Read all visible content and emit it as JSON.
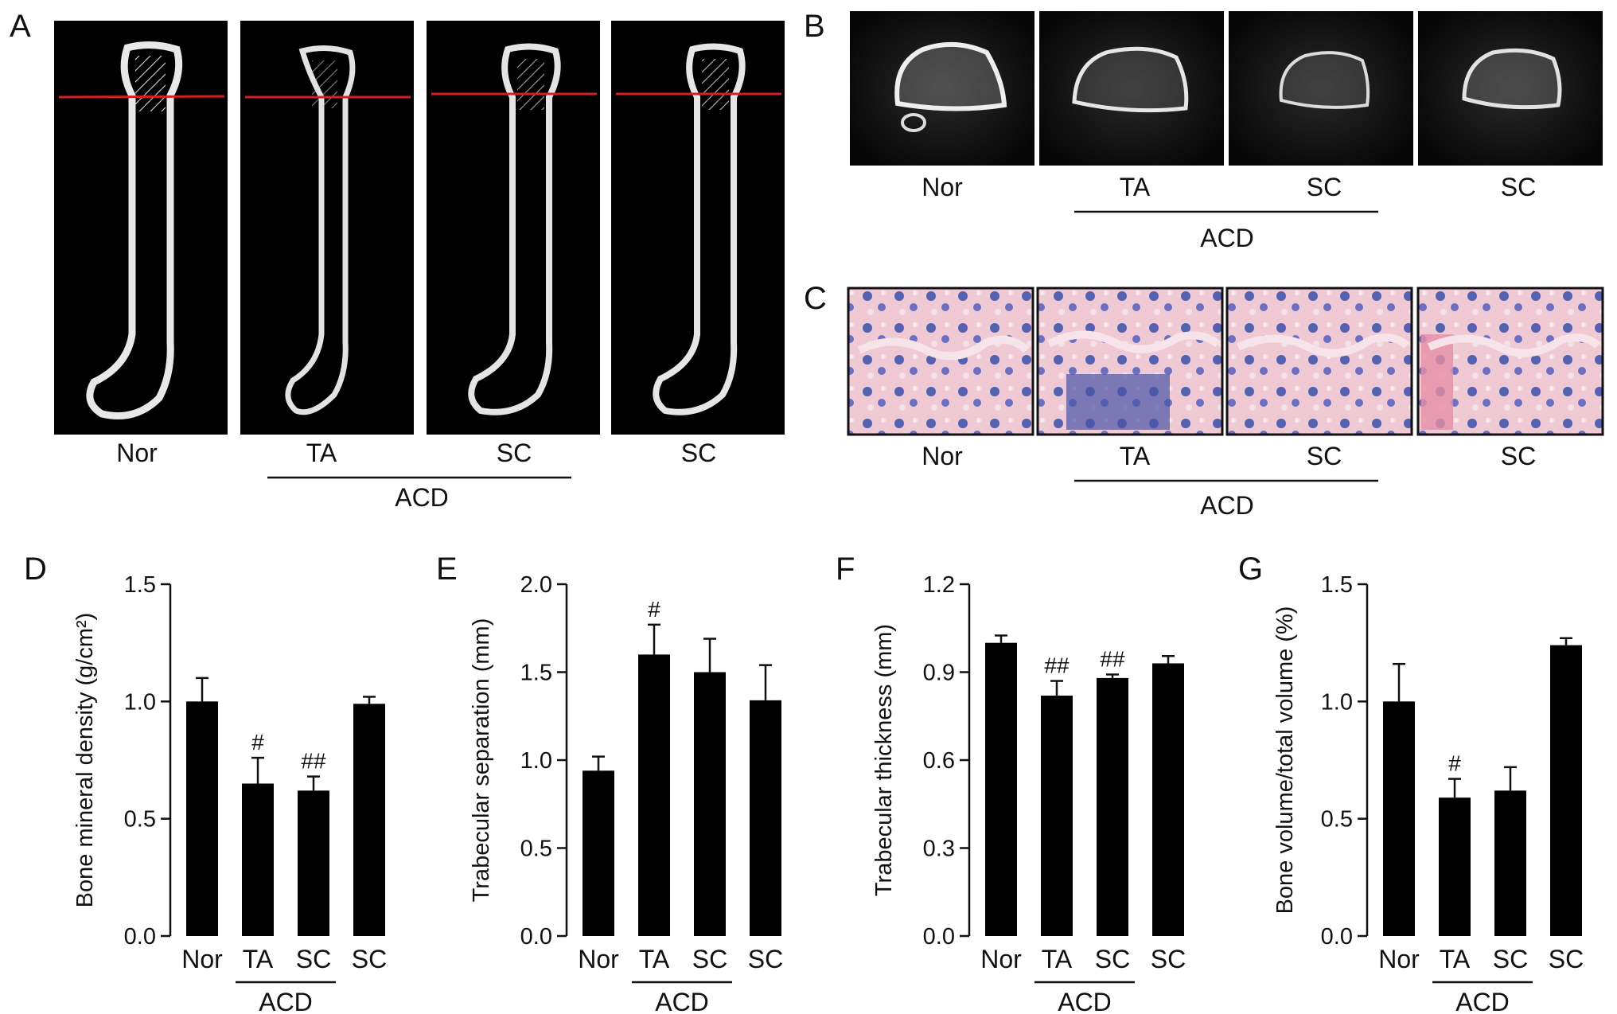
{
  "panels": {
    "A": {
      "letter": "A",
      "images": [
        "Nor",
        "TA",
        "SC",
        "SC"
      ],
      "group_label": "ACD"
    },
    "B": {
      "letter": "B",
      "images": [
        "Nor",
        "TA",
        "SC",
        "SC"
      ],
      "group_label": "ACD"
    },
    "C": {
      "letter": "C",
      "images": [
        "Nor",
        "TA",
        "SC",
        "SC"
      ],
      "group_label": "ACD"
    }
  },
  "chart_data": [
    {
      "panel": "D",
      "type": "bar",
      "categories": [
        "Nor",
        "TA",
        "SC",
        "SC"
      ],
      "values": [
        1.0,
        0.65,
        0.62,
        0.99
      ],
      "errors": [
        0.1,
        0.11,
        0.06,
        0.03
      ],
      "significance": [
        "",
        "#",
        "##",
        ""
      ],
      "ylabel": "Bone mineral density (g/cm²)",
      "ylim": [
        0,
        1.5
      ],
      "yticks": [
        "0.0",
        "0.5",
        "1.0",
        "1.5"
      ],
      "group_label": "ACD",
      "grid": false
    },
    {
      "panel": "E",
      "type": "bar",
      "categories": [
        "Nor",
        "TA",
        "SC",
        "SC"
      ],
      "values": [
        0.94,
        1.6,
        1.5,
        1.34
      ],
      "errors": [
        0.08,
        0.17,
        0.19,
        0.2
      ],
      "significance": [
        "",
        "#",
        "",
        ""
      ],
      "ylabel": "Trabecular separation (mm)",
      "ylim": [
        0,
        2.0
      ],
      "yticks": [
        "0.0",
        "0.5",
        "1.0",
        "1.5",
        "2.0"
      ],
      "group_label": "ACD",
      "grid": false
    },
    {
      "panel": "F",
      "type": "bar",
      "categories": [
        "Nor",
        "TA",
        "SC",
        "SC"
      ],
      "values": [
        1.0,
        0.82,
        0.88,
        0.93
      ],
      "errors": [
        0.025,
        0.05,
        0.012,
        0.025
      ],
      "significance": [
        "",
        "##",
        "##",
        ""
      ],
      "ylabel": "Trabecular thickness (mm)",
      "ylim": [
        0,
        1.2
      ],
      "yticks": [
        "0.0",
        "0.3",
        "0.6",
        "0.9",
        "1.2"
      ],
      "group_label": "ACD",
      "grid": false
    },
    {
      "panel": "G",
      "type": "bar",
      "categories": [
        "Nor",
        "TA",
        "SC",
        "SC"
      ],
      "values": [
        1.0,
        0.59,
        0.62,
        1.24
      ],
      "errors": [
        0.16,
        0.08,
        0.1,
        0.03
      ],
      "significance": [
        "",
        "#",
        "",
        ""
      ],
      "ylabel": "Bone volume/total volume (%)",
      "ylim": [
        0,
        1.5
      ],
      "yticks": [
        "0.0",
        "0.5",
        "1.0",
        "1.5"
      ],
      "group_label": "ACD",
      "grid": false
    }
  ]
}
